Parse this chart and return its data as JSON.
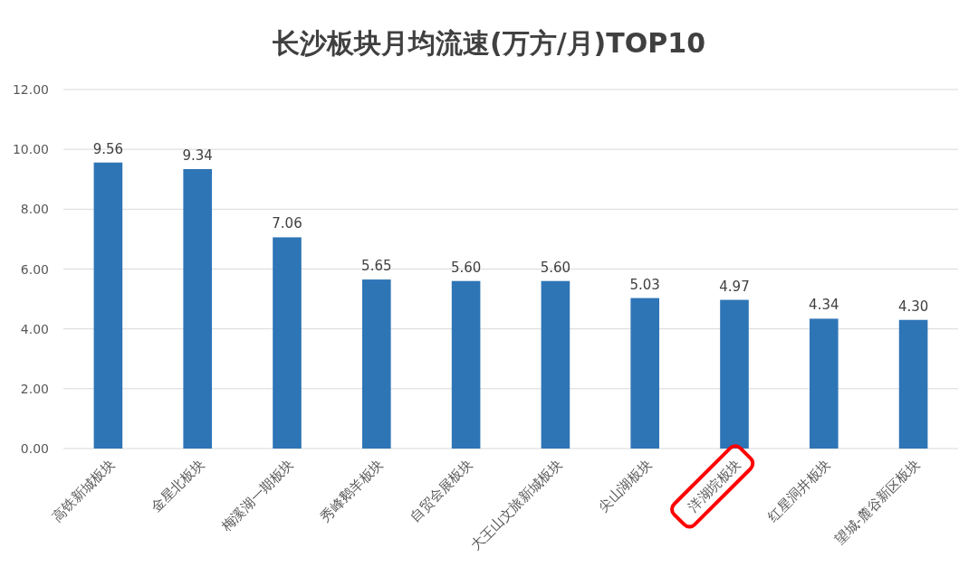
{
  "chart_data": {
    "type": "bar",
    "title": "长沙板块月均流速(万方/月)TOP10",
    "categories": [
      "高铁新城板块",
      "金星北板块",
      "梅溪湖一期板块",
      "秀峰鹅羊板块",
      "自贸会展板块",
      "大王山文旅新城板块",
      "尖山湖板块",
      "洋湖垸板块",
      "红星洞井板块",
      "望城-麓谷新区板块"
    ],
    "values": [
      9.56,
      9.34,
      7.06,
      5.65,
      5.6,
      5.6,
      5.03,
      4.97,
      4.34,
      4.3
    ],
    "value_labels": [
      "9.56",
      "9.34",
      "7.06",
      "5.65",
      "5.60",
      "5.60",
      "5.03",
      "4.97",
      "4.34",
      "4.30"
    ],
    "color": "#2e75b6",
    "ylim": [
      0,
      12
    ],
    "yticks": [
      {
        "value": 0,
        "label": "0.00"
      },
      {
        "value": 2,
        "label": "2.00"
      },
      {
        "value": 4,
        "label": "4.00"
      },
      {
        "value": 6,
        "label": "6.00"
      },
      {
        "value": 8,
        "label": "8.00"
      },
      {
        "value": 10,
        "label": "10.00"
      },
      {
        "value": 12,
        "label": "12.00"
      }
    ],
    "grid": "y"
  }
}
